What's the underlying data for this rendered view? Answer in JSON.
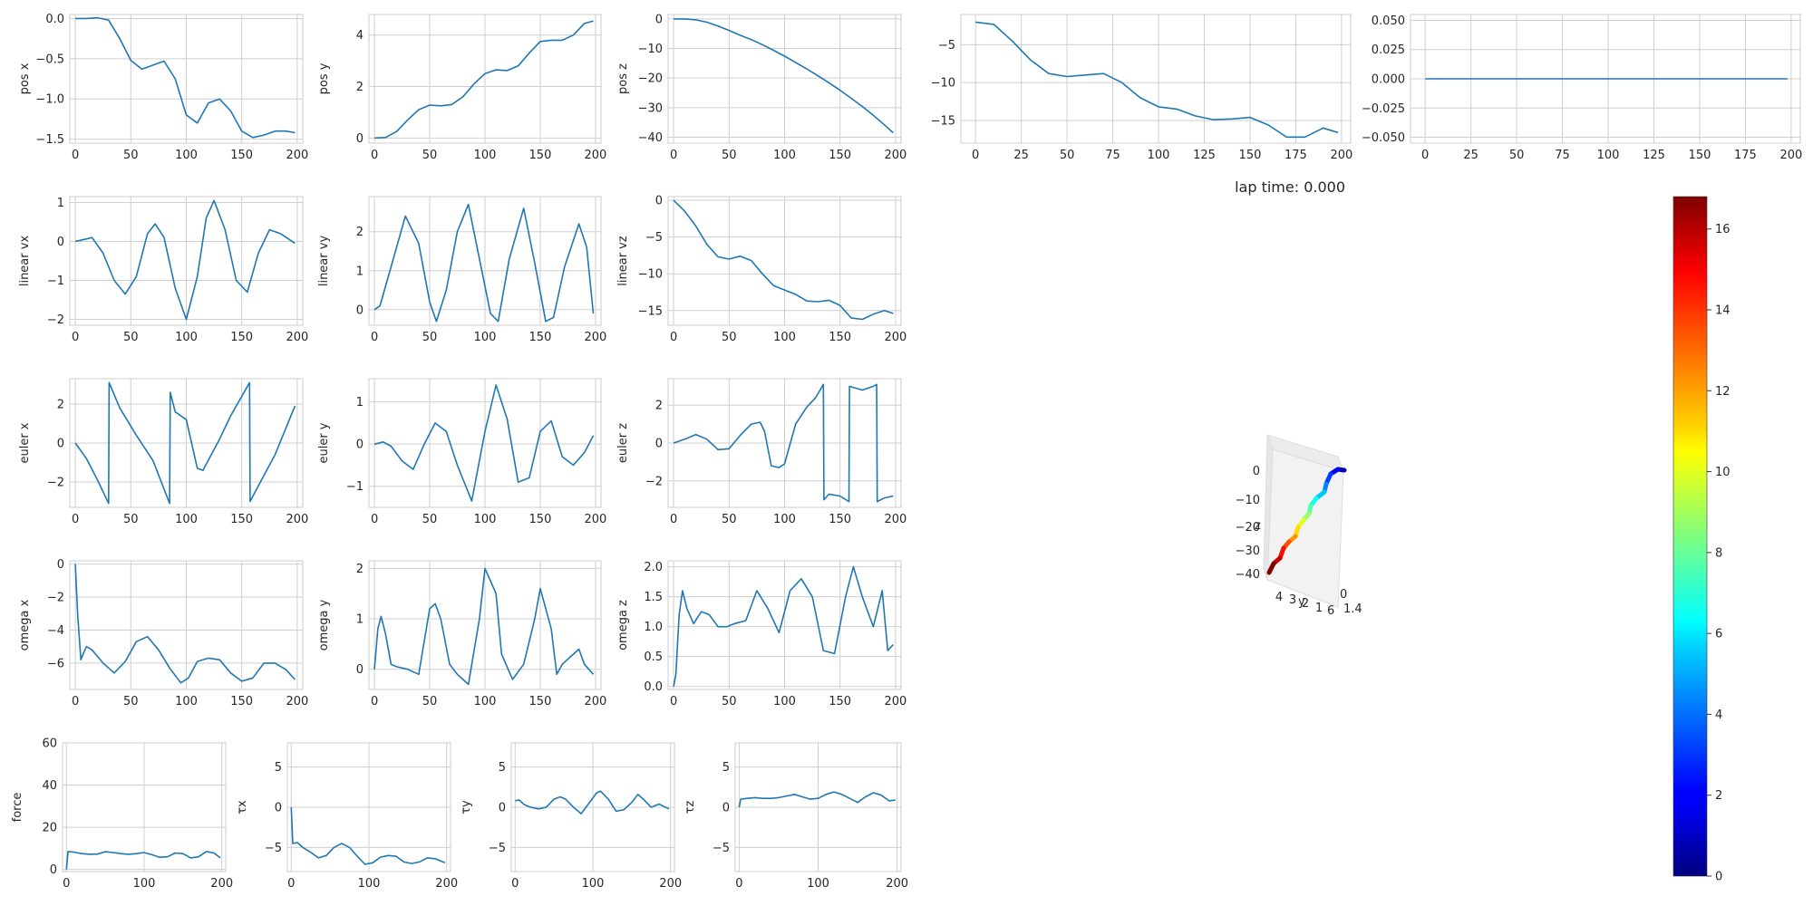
{
  "lap_time_label": "lap time: 0.000",
  "colors": {
    "line": "#1f77b4",
    "grid": "#cfcfcf",
    "frame": "#cccccc"
  },
  "chart_data": [
    {
      "id": "pos-x",
      "type": "line",
      "ylabel": "pos x",
      "xlim": [
        -5,
        205
      ],
      "ylim": [
        -1.55,
        0.05
      ],
      "xticks": [
        0,
        50,
        100,
        150,
        200
      ],
      "yticks": [
        0.0,
        -0.5,
        -1.0,
        -1.5
      ],
      "ytick_labels": [
        "0.0",
        "−0.5",
        "−1.0",
        "−1.5"
      ],
      "x": [
        0,
        10,
        20,
        30,
        40,
        50,
        60,
        70,
        80,
        90,
        100,
        110,
        120,
        130,
        140,
        150,
        160,
        170,
        180,
        190,
        198
      ],
      "y": [
        0,
        0,
        0.01,
        -0.02,
        -0.25,
        -0.52,
        -0.63,
        -0.58,
        -0.53,
        -0.75,
        -1.2,
        -1.3,
        -1.05,
        -1.0,
        -1.15,
        -1.4,
        -1.48,
        -1.45,
        -1.4,
        -1.4,
        -1.42
      ]
    },
    {
      "id": "pos-y",
      "type": "line",
      "ylabel": "pos y",
      "xlim": [
        -5,
        205
      ],
      "ylim": [
        -0.2,
        4.8
      ],
      "xticks": [
        0,
        50,
        100,
        150,
        200
      ],
      "yticks": [
        0,
        2,
        4
      ],
      "ytick_labels": [
        "0",
        "2",
        "4"
      ],
      "x": [
        0,
        10,
        20,
        30,
        40,
        50,
        60,
        70,
        80,
        90,
        100,
        110,
        120,
        130,
        140,
        150,
        160,
        170,
        180,
        190,
        198
      ],
      "y": [
        0,
        0.02,
        0.25,
        0.7,
        1.1,
        1.28,
        1.25,
        1.3,
        1.6,
        2.1,
        2.5,
        2.65,
        2.62,
        2.8,
        3.3,
        3.75,
        3.8,
        3.8,
        4.0,
        4.45,
        4.55
      ]
    },
    {
      "id": "pos-z",
      "type": "line",
      "ylabel": "pos z",
      "xlim": [
        -5,
        205
      ],
      "ylim": [
        -42,
        1.5
      ],
      "xticks": [
        0,
        50,
        100,
        150,
        200
      ],
      "yticks": [
        0,
        -10,
        -20,
        -30,
        -40
      ],
      "ytick_labels": [
        "0",
        "−10",
        "−20",
        "−30",
        "−40"
      ],
      "x": [
        0,
        10,
        20,
        30,
        40,
        50,
        60,
        70,
        80,
        90,
        100,
        110,
        120,
        130,
        140,
        150,
        160,
        170,
        180,
        190,
        198
      ],
      "y": [
        0,
        0,
        -0.3,
        -1.1,
        -2.4,
        -3.9,
        -5.5,
        -7.0,
        -8.7,
        -10.6,
        -12.6,
        -14.7,
        -16.9,
        -19.2,
        -21.6,
        -24.1,
        -26.8,
        -29.6,
        -32.6,
        -35.8,
        -38.5
      ]
    },
    {
      "id": "extra-top",
      "type": "line",
      "ylabel": "",
      "xlim": [
        -8,
        205
      ],
      "ylim": [
        -18,
        -1
      ],
      "xticks": [
        0,
        25,
        50,
        75,
        100,
        125,
        150,
        175,
        200
      ],
      "yticks": [
        -5,
        -10,
        -15
      ],
      "ytick_labels": [
        "−5",
        "−10",
        "−15"
      ],
      "x": [
        0,
        10,
        20,
        30,
        40,
        50,
        60,
        70,
        80,
        90,
        100,
        110,
        120,
        130,
        140,
        150,
        160,
        170,
        180,
        190,
        198
      ],
      "y": [
        -2,
        -2.3,
        -4.5,
        -7,
        -8.8,
        -9.2,
        -9.0,
        -8.8,
        -10,
        -12,
        -13.2,
        -13.5,
        -14.4,
        -14.9,
        -14.8,
        -14.6,
        -15.6,
        -17.2,
        -17.2,
        -16.0,
        -16.6
      ]
    },
    {
      "id": "extra-flat",
      "type": "line",
      "ylabel": "",
      "xlim": [
        -8,
        205
      ],
      "ylim": [
        -0.055,
        0.055
      ],
      "xticks": [
        0,
        25,
        50,
        75,
        100,
        125,
        150,
        175,
        200
      ],
      "yticks": [
        0.05,
        0.025,
        0.0,
        -0.025,
        -0.05
      ],
      "ytick_labels": [
        "0.050",
        "0.025",
        "0.000",
        "−0.025",
        "−0.050"
      ],
      "x": [
        0,
        198
      ],
      "y": [
        0,
        0
      ]
    },
    {
      "id": "linear-vx",
      "type": "line",
      "ylabel": "linear vx",
      "xlim": [
        -5,
        205
      ],
      "ylim": [
        -2.15,
        1.15
      ],
      "xticks": [
        0,
        50,
        100,
        150,
        200
      ],
      "yticks": [
        1,
        0,
        -1,
        -2
      ],
      "ytick_labels": [
        "1",
        "0",
        "−1",
        "−2"
      ],
      "x": [
        0,
        8,
        15,
        25,
        35,
        45,
        55,
        65,
        72,
        80,
        90,
        100,
        110,
        118,
        125,
        135,
        145,
        155,
        165,
        175,
        185,
        198
      ],
      "y": [
        0,
        0.05,
        0.1,
        -0.3,
        -1.0,
        -1.35,
        -0.9,
        0.2,
        0.45,
        0.1,
        -1.2,
        -2.0,
        -0.9,
        0.6,
        1.05,
        0.3,
        -1.0,
        -1.3,
        -0.3,
        0.3,
        0.2,
        -0.05
      ]
    },
    {
      "id": "linear-vy",
      "type": "line",
      "ylabel": "linear vy",
      "xlim": [
        -5,
        205
      ],
      "ylim": [
        -0.4,
        2.9
      ],
      "xticks": [
        0,
        50,
        100,
        150,
        200
      ],
      "yticks": [
        0,
        1,
        2
      ],
      "ytick_labels": [
        "0",
        "1",
        "2"
      ],
      "x": [
        0,
        5,
        15,
        28,
        40,
        50,
        56,
        65,
        75,
        85,
        95,
        105,
        112,
        122,
        135,
        145,
        155,
        162,
        172,
        185,
        192,
        198
      ],
      "y": [
        0,
        0.1,
        1.1,
        2.4,
        1.7,
        0.2,
        -0.3,
        0.5,
        2.0,
        2.7,
        1.3,
        -0.1,
        -0.3,
        1.3,
        2.6,
        1.2,
        -0.3,
        -0.2,
        1.1,
        2.2,
        1.6,
        -0.1
      ]
    },
    {
      "id": "linear-vz",
      "type": "line",
      "ylabel": "linear vz",
      "xlim": [
        -5,
        205
      ],
      "ylim": [
        -17,
        0.5
      ],
      "xticks": [
        0,
        50,
        100,
        150,
        200
      ],
      "yticks": [
        0,
        -5,
        -10,
        -15
      ],
      "ytick_labels": [
        "0",
        "−5",
        "−10",
        "−15"
      ],
      "x": [
        0,
        10,
        20,
        30,
        40,
        50,
        60,
        70,
        80,
        90,
        100,
        110,
        120,
        130,
        140,
        150,
        160,
        170,
        180,
        190,
        198
      ],
      "y": [
        0,
        -1.5,
        -3.5,
        -6,
        -7.7,
        -8.0,
        -7.6,
        -8.2,
        -10,
        -11.6,
        -12.2,
        -12.8,
        -13.7,
        -13.8,
        -13.6,
        -14.3,
        -16.0,
        -16.2,
        -15.5,
        -15.0,
        -15.4
      ]
    },
    {
      "id": "euler-x",
      "type": "line",
      "ylabel": "euler x",
      "xlim": [
        -5,
        205
      ],
      "ylim": [
        -3.3,
        3.3
      ],
      "xticks": [
        0,
        50,
        100,
        150,
        200
      ],
      "yticks": [
        2,
        0,
        -2
      ],
      "ytick_labels": [
        "2",
        "0",
        "−2"
      ],
      "x": [
        0,
        10,
        20,
        30,
        30.5,
        40,
        55,
        70,
        85,
        85.5,
        90,
        100,
        110,
        115,
        130,
        140,
        157,
        157.5,
        165,
        180,
        198
      ],
      "y": [
        0,
        -0.8,
        -1.9,
        -3.1,
        3.1,
        1.8,
        0.4,
        -0.9,
        -3.1,
        2.6,
        1.6,
        1.2,
        -1.3,
        -1.4,
        0.2,
        1.4,
        3.1,
        -3.0,
        -2.2,
        -0.6,
        1.9
      ]
    },
    {
      "id": "euler-y",
      "type": "line",
      "ylabel": "euler y",
      "xlim": [
        -5,
        205
      ],
      "ylim": [
        -1.5,
        1.55
      ],
      "xticks": [
        0,
        50,
        100,
        150,
        200
      ],
      "yticks": [
        1,
        0,
        -1
      ],
      "ytick_labels": [
        "1",
        "0",
        "−1"
      ],
      "x": [
        0,
        8,
        15,
        25,
        35,
        45,
        55,
        65,
        75,
        88,
        100,
        110,
        120,
        130,
        140,
        150,
        160,
        170,
        180,
        190,
        198
      ],
      "y": [
        0,
        0.05,
        -0.05,
        -0.4,
        -0.6,
        0.0,
        0.5,
        0.3,
        -0.5,
        -1.35,
        0.3,
        1.4,
        0.6,
        -0.9,
        -0.8,
        0.3,
        0.55,
        -0.3,
        -0.5,
        -0.2,
        0.2
      ]
    },
    {
      "id": "euler-z",
      "type": "line",
      "ylabel": "euler z",
      "xlim": [
        -5,
        205
      ],
      "ylim": [
        -3.4,
        3.4
      ],
      "xticks": [
        0,
        50,
        100,
        150,
        200
      ],
      "yticks": [
        2,
        0,
        -2
      ],
      "ytick_labels": [
        "2",
        "0",
        "−2"
      ],
      "x": [
        0,
        10,
        20,
        30,
        40,
        50,
        60,
        70,
        78,
        82,
        88,
        95,
        100,
        110,
        120,
        128,
        135,
        135.5,
        140,
        150,
        158,
        158.5,
        170,
        180,
        183,
        183.5,
        190,
        198
      ],
      "y": [
        0,
        0.2,
        0.45,
        0.2,
        -0.35,
        -0.3,
        0.4,
        1.0,
        1.1,
        0.6,
        -1.2,
        -1.3,
        -1.1,
        1.0,
        1.9,
        2.4,
        3.1,
        -3.0,
        -2.7,
        -2.8,
        -3.1,
        3.0,
        2.8,
        3.0,
        3.1,
        -3.1,
        -2.9,
        -2.8
      ]
    },
    {
      "id": "omega-x",
      "type": "line",
      "ylabel": "omega x",
      "xlim": [
        -5,
        205
      ],
      "ylim": [
        -7.6,
        0.2
      ],
      "xticks": [
        0,
        50,
        100,
        150,
        200
      ],
      "yticks": [
        0,
        -2,
        -4,
        -6
      ],
      "ytick_labels": [
        "0",
        "−2",
        "−4",
        "−6"
      ],
      "x": [
        0,
        2,
        5,
        8,
        10,
        15,
        25,
        35,
        45,
        55,
        65,
        75,
        85,
        95,
        102,
        110,
        120,
        130,
        140,
        150,
        160,
        170,
        180,
        190,
        198
      ],
      "y": [
        0,
        -3.0,
        -5.8,
        -5.3,
        -5.0,
        -5.2,
        -6.0,
        -6.6,
        -5.9,
        -4.7,
        -4.4,
        -5.2,
        -6.3,
        -7.2,
        -6.9,
        -5.9,
        -5.7,
        -5.8,
        -6.6,
        -7.1,
        -6.9,
        -6.0,
        -6.0,
        -6.4,
        -7.0
      ]
    },
    {
      "id": "omega-y",
      "type": "line",
      "ylabel": "omega y",
      "xlim": [
        -5,
        205
      ],
      "ylim": [
        -0.4,
        2.15
      ],
      "xticks": [
        0,
        50,
        100,
        150,
        200
      ],
      "yticks": [
        0,
        1,
        2
      ],
      "ytick_labels": [
        "0",
        "1",
        "2"
      ],
      "x": [
        0,
        3,
        6,
        10,
        15,
        20,
        30,
        40,
        50,
        55,
        60,
        68,
        75,
        85,
        95,
        100,
        110,
        115,
        125,
        135,
        145,
        150,
        160,
        165,
        170,
        180,
        185,
        190,
        198
      ],
      "y": [
        0,
        0.8,
        1.05,
        0.7,
        0.1,
        0.05,
        0.0,
        -0.1,
        1.2,
        1.3,
        1.0,
        0.1,
        -0.1,
        -0.3,
        1.0,
        2.0,
        1.5,
        0.3,
        -0.2,
        0.1,
        1.0,
        1.6,
        0.8,
        -0.1,
        0.1,
        0.3,
        0.4,
        0.1,
        -0.1
      ]
    },
    {
      "id": "omega-z",
      "type": "line",
      "ylabel": "omega z",
      "xlim": [
        -5,
        205
      ],
      "ylim": [
        -0.05,
        2.1
      ],
      "xticks": [
        0,
        50,
        100,
        150,
        200
      ],
      "yticks": [
        0.0,
        0.5,
        1.0,
        1.5,
        2.0
      ],
      "ytick_labels": [
        "0.0",
        "0.5",
        "1.0",
        "1.5",
        "2.0"
      ],
      "x": [
        0,
        2,
        5,
        8,
        12,
        18,
        25,
        32,
        40,
        48,
        55,
        65,
        75,
        85,
        95,
        105,
        115,
        125,
        135,
        145,
        155,
        162,
        170,
        180,
        188,
        193,
        198
      ],
      "y": [
        0,
        0.2,
        1.2,
        1.6,
        1.3,
        1.05,
        1.25,
        1.2,
        1.0,
        1.0,
        1.05,
        1.1,
        1.6,
        1.3,
        0.9,
        1.6,
        1.8,
        1.5,
        0.6,
        0.55,
        1.5,
        2.0,
        1.5,
        1.0,
        1.6,
        0.6,
        0.7
      ]
    },
    {
      "id": "force",
      "type": "line",
      "ylabel": "force",
      "xlim": [
        -5,
        205
      ],
      "ylim": [
        -1,
        60
      ],
      "xticks": [
        0,
        100,
        200
      ],
      "yticks": [
        0,
        20,
        40,
        60
      ],
      "ytick_labels": [
        "0",
        "20",
        "40",
        "60"
      ],
      "x": [
        0,
        2,
        10,
        20,
        30,
        40,
        50,
        60,
        70,
        80,
        90,
        100,
        110,
        120,
        130,
        140,
        150,
        160,
        170,
        180,
        190,
        198
      ],
      "y": [
        0,
        8.5,
        8.2,
        7.5,
        7.2,
        7.3,
        8.4,
        8.0,
        7.5,
        7.2,
        7.5,
        8.0,
        7.0,
        5.8,
        6.0,
        7.8,
        7.5,
        5.5,
        6.0,
        8.5,
        7.8,
        5.5
      ]
    },
    {
      "id": "tau-x",
      "type": "line",
      "ylabel": "τx",
      "xlim": [
        -5,
        205
      ],
      "ylim": [
        -8,
        8
      ],
      "xticks": [
        0,
        100,
        200
      ],
      "yticks": [
        5,
        0,
        -5
      ],
      "ytick_labels": [
        "5",
        "0",
        "−5"
      ],
      "x": [
        0,
        2,
        8,
        15,
        25,
        35,
        45,
        55,
        65,
        75,
        85,
        95,
        105,
        115,
        125,
        135,
        145,
        155,
        165,
        175,
        185,
        198
      ],
      "y": [
        0,
        -4.5,
        -4.4,
        -5.0,
        -5.6,
        -6.3,
        -6.0,
        -5.0,
        -4.5,
        -5.0,
        -6.1,
        -7.1,
        -6.9,
        -6.2,
        -6.0,
        -6.1,
        -6.8,
        -7.0,
        -6.8,
        -6.3,
        -6.4,
        -6.9
      ]
    },
    {
      "id": "tau-y",
      "type": "line",
      "ylabel": "τy",
      "xlim": [
        -5,
        205
      ],
      "ylim": [
        -8,
        8
      ],
      "xticks": [
        0,
        100,
        200
      ],
      "yticks": [
        5,
        0,
        -5
      ],
      "ytick_labels": [
        "5",
        "0",
        "−5"
      ],
      "x": [
        0,
        5,
        12,
        20,
        30,
        40,
        50,
        58,
        65,
        75,
        85,
        95,
        105,
        110,
        120,
        130,
        140,
        150,
        158,
        165,
        175,
        185,
        198
      ],
      "y": [
        0.8,
        0.9,
        0.3,
        0.0,
        -0.2,
        0.0,
        1.0,
        1.3,
        1.0,
        0.0,
        -0.8,
        0.5,
        1.8,
        2.0,
        1.0,
        -0.5,
        -0.3,
        0.6,
        1.6,
        1.0,
        0.0,
        0.4,
        -0.2
      ]
    },
    {
      "id": "tau-z",
      "type": "line",
      "ylabel": "τz",
      "xlim": [
        -5,
        205
      ],
      "ylim": [
        -8,
        8
      ],
      "xticks": [
        0,
        100,
        200
      ],
      "yticks": [
        5,
        0,
        -5
      ],
      "ytick_labels": [
        "5",
        "0",
        "−5"
      ],
      "x": [
        0,
        2,
        10,
        20,
        30,
        40,
        50,
        60,
        70,
        80,
        90,
        100,
        110,
        120,
        130,
        140,
        150,
        160,
        170,
        180,
        190,
        198
      ],
      "y": [
        0,
        1.0,
        1.1,
        1.2,
        1.1,
        1.1,
        1.2,
        1.4,
        1.6,
        1.3,
        1.0,
        1.1,
        1.6,
        1.9,
        1.6,
        1.1,
        0.6,
        1.3,
        1.8,
        1.5,
        0.8,
        0.9
      ]
    }
  ],
  "plot3d": {
    "zlabel": "z",
    "ylabel": "y",
    "zticks": [
      "0",
      "−10",
      "−20",
      "−30",
      "−40"
    ],
    "yticks": [
      "4",
      "3",
      "2",
      "1"
    ],
    "xticks_visible": [
      "0",
      "6",
      "1.4"
    ]
  },
  "colorbar": {
    "colormap": "jet",
    "min": 0,
    "max": 16.8,
    "ticks": [
      0,
      2,
      4,
      6,
      8,
      10,
      12,
      14,
      16
    ],
    "tick_labels": [
      "0",
      "2",
      "4",
      "6",
      "8",
      "10",
      "12",
      "14",
      "16"
    ]
  }
}
